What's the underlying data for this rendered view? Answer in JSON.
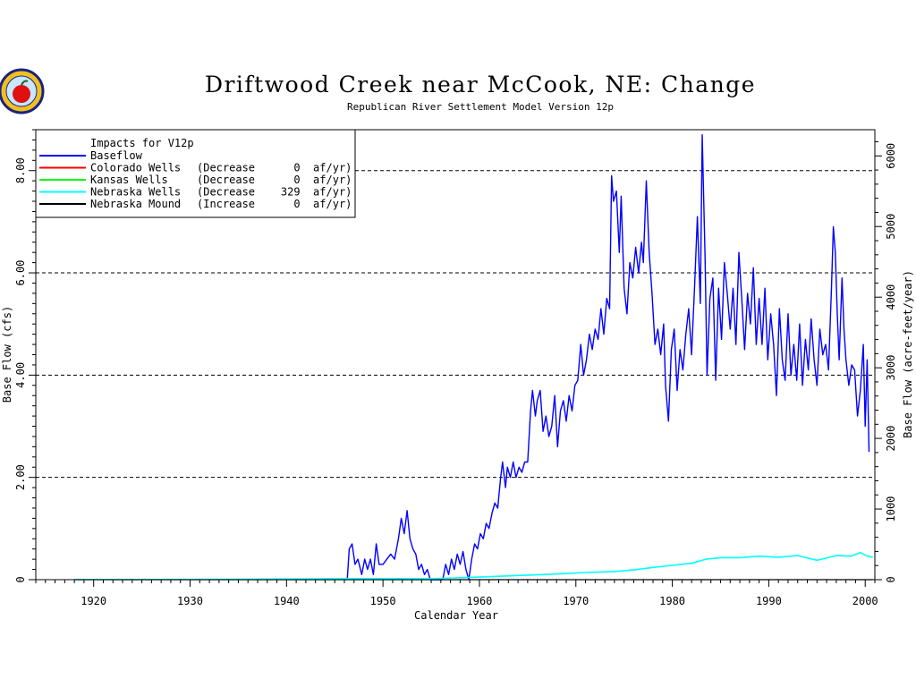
{
  "chart_data": {
    "type": "line",
    "title": "Driftwood Creek near McCook, NE: Change",
    "subtitle": "Republican River Settlement Model Version 12p",
    "xlabel": "Calendar Year",
    "ylabel": "Base Flow (cfs)",
    "y2label": "Base Flow (acre-feet/year)",
    "xlim": [
      1914,
      2001
    ],
    "ylim": [
      0,
      8.8
    ],
    "y2lim": [
      0,
      6371
    ],
    "x_ticks": [
      "1920",
      "1930",
      "1940",
      "1950",
      "1960",
      "1970",
      "1980",
      "1990",
      "2000"
    ],
    "y_ticks": [
      "0",
      "2.00",
      "4.00",
      "6.00",
      "8.00"
    ],
    "y2_ticks": [
      "0",
      "1000",
      "2000",
      "3000",
      "4000",
      "5000",
      "6000"
    ],
    "grid": "horizontal dashed at 2, 4, 6, 8 cfs",
    "legend": {
      "placement": "top-left",
      "title": "Impacts for V12p",
      "rows": [
        {
          "name": "Baseflow",
          "detail": "",
          "color": "#0000ff"
        },
        {
          "name": "Colorado Wells",
          "detail": "(Decrease      0  af/yr)",
          "color": "#ff0000"
        },
        {
          "name": "Kansas Wells",
          "detail": "(Decrease      0  af/yr)",
          "color": "#00ff00"
        },
        {
          "name": "Nebraska Wells",
          "detail": "(Decrease    329  af/yr)",
          "color": "#00ffff"
        },
        {
          "name": "Nebraska Mound",
          "detail": "(Increase      0  af/yr)",
          "color": "#000000"
        }
      ]
    },
    "series": [
      {
        "name": "Baseflow",
        "color": "#0000ff",
        "points": [
          [
            1946.3,
            0.0
          ],
          [
            1946.5,
            0.6
          ],
          [
            1946.8,
            0.7
          ],
          [
            1947.1,
            0.3
          ],
          [
            1947.4,
            0.4
          ],
          [
            1947.8,
            0.1
          ],
          [
            1948.1,
            0.4
          ],
          [
            1948.4,
            0.2
          ],
          [
            1948.7,
            0.4
          ],
          [
            1949.0,
            0.1
          ],
          [
            1949.3,
            0.7
          ],
          [
            1949.6,
            0.3
          ],
          [
            1950.0,
            0.3
          ],
          [
            1950.4,
            0.4
          ],
          [
            1950.8,
            0.5
          ],
          [
            1951.2,
            0.4
          ],
          [
            1951.6,
            0.8
          ],
          [
            1951.9,
            1.2
          ],
          [
            1952.2,
            0.9
          ],
          [
            1952.5,
            1.35
          ],
          [
            1952.8,
            0.8
          ],
          [
            1953.1,
            0.6
          ],
          [
            1953.4,
            0.5
          ],
          [
            1953.7,
            0.2
          ],
          [
            1954.0,
            0.3
          ],
          [
            1954.3,
            0.1
          ],
          [
            1954.6,
            0.2
          ],
          [
            1954.9,
            0.0
          ],
          [
            1956.2,
            0.0
          ],
          [
            1956.5,
            0.3
          ],
          [
            1956.8,
            0.1
          ],
          [
            1957.1,
            0.4
          ],
          [
            1957.4,
            0.2
          ],
          [
            1957.7,
            0.5
          ],
          [
            1958.0,
            0.3
          ],
          [
            1958.3,
            0.55
          ],
          [
            1958.6,
            0.2
          ],
          [
            1958.9,
            0.0
          ],
          [
            1959.2,
            0.4
          ],
          [
            1959.5,
            0.7
          ],
          [
            1959.8,
            0.6
          ],
          [
            1960.1,
            0.9
          ],
          [
            1960.4,
            0.8
          ],
          [
            1960.7,
            1.1
          ],
          [
            1961.0,
            1.0
          ],
          [
            1961.3,
            1.3
          ],
          [
            1961.6,
            1.5
          ],
          [
            1961.9,
            1.4
          ],
          [
            1962.2,
            2.0
          ],
          [
            1962.4,
            2.3
          ],
          [
            1962.7,
            1.8
          ],
          [
            1962.9,
            2.2
          ],
          [
            1963.2,
            2.0
          ],
          [
            1963.5,
            2.3
          ],
          [
            1963.8,
            2.0
          ],
          [
            1964.1,
            2.2
          ],
          [
            1964.4,
            2.1
          ],
          [
            1964.7,
            2.3
          ],
          [
            1965.0,
            2.3
          ],
          [
            1965.3,
            3.3
          ],
          [
            1965.5,
            3.7
          ],
          [
            1965.8,
            3.2
          ],
          [
            1966.0,
            3.5
          ],
          [
            1966.3,
            3.7
          ],
          [
            1966.6,
            2.9
          ],
          [
            1966.9,
            3.2
          ],
          [
            1967.2,
            2.8
          ],
          [
            1967.5,
            3.0
          ],
          [
            1967.8,
            3.6
          ],
          [
            1968.1,
            2.6
          ],
          [
            1968.4,
            3.3
          ],
          [
            1968.7,
            3.5
          ],
          [
            1969.0,
            3.1
          ],
          [
            1969.3,
            3.6
          ],
          [
            1969.6,
            3.3
          ],
          [
            1969.9,
            3.8
          ],
          [
            1970.2,
            3.9
          ],
          [
            1970.5,
            4.6
          ],
          [
            1970.8,
            4.0
          ],
          [
            1971.1,
            4.3
          ],
          [
            1971.4,
            4.8
          ],
          [
            1971.7,
            4.5
          ],
          [
            1972.0,
            4.9
          ],
          [
            1972.3,
            4.7
          ],
          [
            1972.6,
            5.3
          ],
          [
            1972.9,
            4.8
          ],
          [
            1973.2,
            5.5
          ],
          [
            1973.5,
            5.3
          ],
          [
            1973.7,
            7.9
          ],
          [
            1973.9,
            7.4
          ],
          [
            1974.2,
            7.6
          ],
          [
            1974.5,
            6.4
          ],
          [
            1974.7,
            7.5
          ],
          [
            1975.0,
            5.7
          ],
          [
            1975.3,
            5.2
          ],
          [
            1975.6,
            6.2
          ],
          [
            1975.9,
            5.9
          ],
          [
            1976.2,
            6.5
          ],
          [
            1976.5,
            6.0
          ],
          [
            1976.8,
            6.6
          ],
          [
            1977.0,
            6.2
          ],
          [
            1977.3,
            7.8
          ],
          [
            1977.6,
            6.4
          ],
          [
            1977.9,
            5.6
          ],
          [
            1978.2,
            4.6
          ],
          [
            1978.5,
            4.9
          ],
          [
            1978.8,
            4.4
          ],
          [
            1979.1,
            5.0
          ],
          [
            1979.3,
            3.8
          ],
          [
            1979.6,
            3.1
          ],
          [
            1979.9,
            4.5
          ],
          [
            1980.2,
            4.9
          ],
          [
            1980.5,
            3.7
          ],
          [
            1980.8,
            4.5
          ],
          [
            1981.1,
            4.1
          ],
          [
            1981.4,
            4.8
          ],
          [
            1981.7,
            5.3
          ],
          [
            1982.0,
            4.4
          ],
          [
            1982.3,
            5.7
          ],
          [
            1982.6,
            7.1
          ],
          [
            1982.9,
            5.4
          ],
          [
            1983.1,
            8.7
          ],
          [
            1983.4,
            6.3
          ],
          [
            1983.6,
            4.0
          ],
          [
            1983.9,
            5.5
          ],
          [
            1984.2,
            5.9
          ],
          [
            1984.5,
            3.9
          ],
          [
            1984.8,
            5.7
          ],
          [
            1985.1,
            4.7
          ],
          [
            1985.4,
            6.2
          ],
          [
            1985.7,
            5.6
          ],
          [
            1986.0,
            4.9
          ],
          [
            1986.3,
            5.7
          ],
          [
            1986.6,
            4.6
          ],
          [
            1986.9,
            6.4
          ],
          [
            1987.2,
            5.5
          ],
          [
            1987.5,
            4.5
          ],
          [
            1987.8,
            5.6
          ],
          [
            1988.1,
            5.0
          ],
          [
            1988.4,
            6.1
          ],
          [
            1988.7,
            4.6
          ],
          [
            1989.0,
            5.5
          ],
          [
            1989.3,
            4.6
          ],
          [
            1989.6,
            5.7
          ],
          [
            1989.9,
            4.3
          ],
          [
            1990.2,
            5.2
          ],
          [
            1990.5,
            4.6
          ],
          [
            1990.8,
            3.6
          ],
          [
            1991.1,
            5.3
          ],
          [
            1991.4,
            4.3
          ],
          [
            1991.7,
            3.9
          ],
          [
            1992.0,
            5.2
          ],
          [
            1992.3,
            4.0
          ],
          [
            1992.6,
            4.6
          ],
          [
            1992.9,
            3.9
          ],
          [
            1993.2,
            5.0
          ],
          [
            1993.5,
            3.8
          ],
          [
            1993.8,
            4.7
          ],
          [
            1994.1,
            4.1
          ],
          [
            1994.4,
            5.1
          ],
          [
            1994.7,
            4.3
          ],
          [
            1995.0,
            3.8
          ],
          [
            1995.3,
            4.9
          ],
          [
            1995.6,
            4.4
          ],
          [
            1995.9,
            4.6
          ],
          [
            1996.2,
            4.1
          ],
          [
            1996.5,
            5.7
          ],
          [
            1996.7,
            6.9
          ],
          [
            1996.9,
            6.4
          ],
          [
            1997.1,
            5.2
          ],
          [
            1997.3,
            4.3
          ],
          [
            1997.6,
            5.9
          ],
          [
            1997.8,
            4.9
          ],
          [
            1998.0,
            4.3
          ],
          [
            1998.3,
            3.8
          ],
          [
            1998.6,
            4.2
          ],
          [
            1998.9,
            4.1
          ],
          [
            1999.2,
            3.2
          ],
          [
            1999.5,
            3.7
          ],
          [
            1999.8,
            4.6
          ],
          [
            2000.0,
            3.0
          ],
          [
            2000.2,
            4.3
          ],
          [
            2000.4,
            2.5
          ]
        ]
      },
      {
        "name": "Nebraska Wells",
        "color": "#00ffff",
        "points": [
          [
            1918.0,
            0.0
          ],
          [
            1937.0,
            0.01
          ],
          [
            1946.0,
            0.02
          ],
          [
            1955.0,
            0.02
          ],
          [
            1960.0,
            0.05
          ],
          [
            1965.0,
            0.09
          ],
          [
            1968.0,
            0.11
          ],
          [
            1971.0,
            0.14
          ],
          [
            1974.0,
            0.16
          ],
          [
            1976.0,
            0.19
          ],
          [
            1978.0,
            0.24
          ],
          [
            1980.0,
            0.28
          ],
          [
            1982.0,
            0.32
          ],
          [
            1983.5,
            0.4
          ],
          [
            1985.0,
            0.43
          ],
          [
            1987.0,
            0.43
          ],
          [
            1989.0,
            0.46
          ],
          [
            1991.0,
            0.44
          ],
          [
            1993.0,
            0.47
          ],
          [
            1995.0,
            0.38
          ],
          [
            1997.0,
            0.47
          ],
          [
            1998.5,
            0.46
          ],
          [
            1999.5,
            0.53
          ],
          [
            2000.2,
            0.46
          ],
          [
            2000.8,
            0.44
          ]
        ]
      },
      {
        "name": "Nebraska Mound",
        "color": "#000000",
        "points": [
          [
            1918.0,
            0.0
          ],
          [
            2000.8,
            0.0
          ]
        ]
      }
    ]
  }
}
